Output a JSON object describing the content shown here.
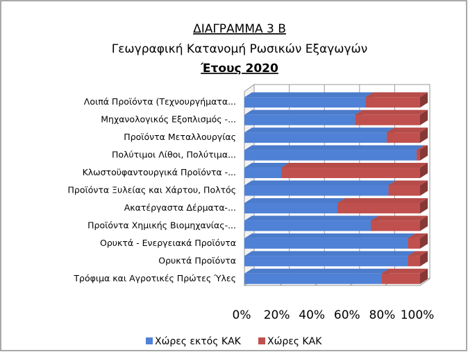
{
  "chart_data": {
    "type": "stacked_barh",
    "title_lines": [
      "ΔΙΑΓΡΑΜΜΑ 3 Β",
      "Γεωγραφική Κατανομή Ρωσικών Εξαγωγών",
      "Έτους 2020"
    ],
    "categories": [
      "Λοιπά Προϊόντα (Τεχνουργήματα...",
      "Μηχανολογικός Εξοπλισμός -...",
      "Προϊόντα Μεταλλουργίας",
      "Πολύτιμοι Λίθοι, Πολύτιμα...",
      "Κλωστοϋφαντουργικά Προϊόντα -...",
      "Προϊόντα Ξυλείας και Χάρτου, Πολτός",
      "Ακατέργαστα Δέρματα-...",
      "Προϊόντα Χημικής Βιομηχανίας-...",
      "Ορυκτά - Ενεργειακά Προϊόντα",
      "Ορυκτά Προϊόντα",
      "Τρόφιμα και Αγροτικές Πρώτες Ύλες"
    ],
    "series": [
      {
        "name": "Χώρες εκτός ΚΑΚ",
        "color": "#4f81d6",
        "values": [
          69,
          63,
          81,
          98,
          21,
          82,
          53,
          72,
          93,
          93,
          78
        ]
      },
      {
        "name": "Χώρες ΚΑΚ",
        "color": "#c0504d",
        "values": [
          31,
          37,
          19,
          2,
          79,
          18,
          47,
          28,
          7,
          7,
          22
        ]
      }
    ],
    "xlim": [
      0,
      100
    ],
    "xticks": [
      {
        "value": 0,
        "label": "0%"
      },
      {
        "value": 20,
        "label": "20%"
      },
      {
        "value": 40,
        "label": "40%"
      },
      {
        "value": 60,
        "label": "60%"
      },
      {
        "value": 80,
        "label": "80%"
      },
      {
        "value": 100,
        "label": "100%"
      }
    ],
    "grid": true,
    "legend": "bottom"
  }
}
